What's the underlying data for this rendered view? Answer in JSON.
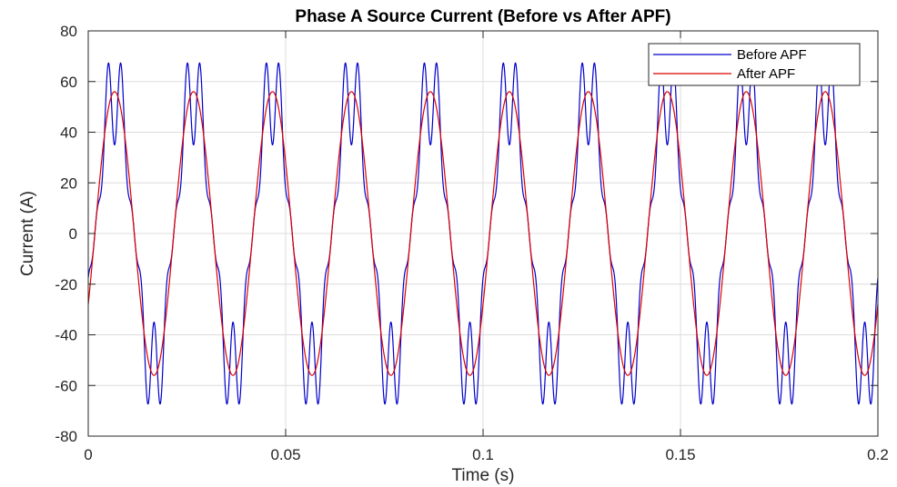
{
  "chart_data": {
    "type": "line",
    "title": "Phase A Source Current (Before vs After APF)",
    "xlabel": "Time (s)",
    "ylabel": "Current (A)",
    "xlim": [
      0,
      0.2
    ],
    "ylim": [
      -80,
      80
    ],
    "xticks": [
      0,
      0.05,
      0.1,
      0.15,
      0.2
    ],
    "xtick_labels": [
      "0",
      "0.05",
      "0.1",
      "0.15",
      "0.2"
    ],
    "yticks": [
      -80,
      -60,
      -40,
      -20,
      0,
      20,
      40,
      60,
      80
    ],
    "ytick_labels": [
      "-80",
      "-60",
      "-40",
      "-20",
      "0",
      "20",
      "40",
      "60",
      "80"
    ],
    "grid": true,
    "legend_position": "top-right",
    "frequency_hz": 50,
    "series": [
      {
        "name": "Before APF",
        "color": "#0000cc",
        "components": [
          {
            "harmonic": 1,
            "amplitude": 56,
            "phase_deg": -30
          },
          {
            "harmonic": 5,
            "amplitude": 12,
            "phase_deg": 30
          },
          {
            "harmonic": 7,
            "amplitude": 9,
            "phase_deg": 150
          }
        ]
      },
      {
        "name": "After APF",
        "color": "#dd0000",
        "components": [
          {
            "harmonic": 1,
            "amplitude": 56,
            "phase_deg": -30
          }
        ]
      }
    ]
  }
}
